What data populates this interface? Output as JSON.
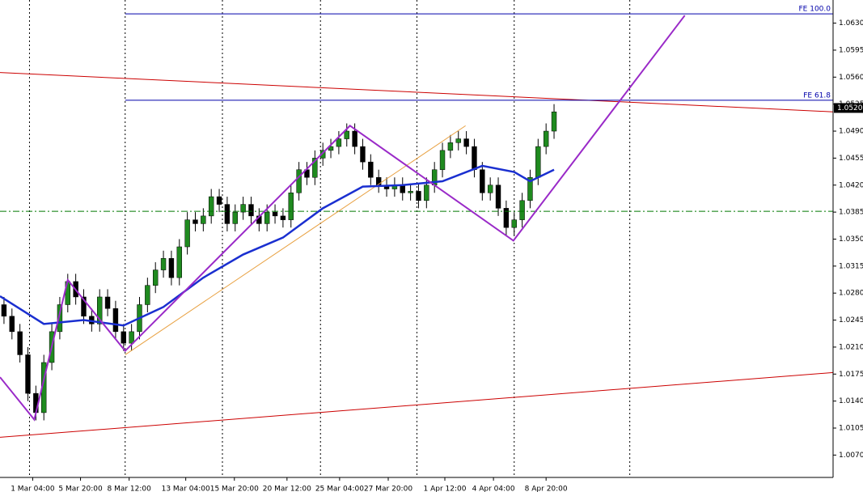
{
  "chart_data": {
    "type": "candlestick",
    "xlim": [
      -0.5,
      104
    ],
    "ylim": [
      1.0041,
      1.066
    ],
    "yticks": [
      {
        "value": 1.063,
        "label": "1.0630"
      },
      {
        "value": 1.0595,
        "label": "1.0595"
      },
      {
        "value": 1.056,
        "label": "1.0560"
      },
      {
        "value": 1.0525,
        "label": "1.0525"
      },
      {
        "value": 1.049,
        "label": "1.0490"
      },
      {
        "value": 1.0455,
        "label": "1.0455"
      },
      {
        "value": 1.042,
        "label": "1.0420"
      },
      {
        "value": 1.0385,
        "label": "1.0385"
      },
      {
        "value": 1.035,
        "label": "1.0350"
      },
      {
        "value": 1.0315,
        "label": "1.0315"
      },
      {
        "value": 1.028,
        "label": "1.0280"
      },
      {
        "value": 1.0245,
        "label": "1.0245"
      },
      {
        "value": 1.021,
        "label": "1.0210"
      },
      {
        "value": 1.0175,
        "label": "1.0175"
      },
      {
        "value": 1.014,
        "label": "1.0140"
      },
      {
        "value": 1.0105,
        "label": "1.0105"
      },
      {
        "value": 1.007,
        "label": "1.0070"
      }
    ],
    "xticks": [
      {
        "value": 3.6,
        "label": "1 Mar 04:00"
      },
      {
        "value": 9.6,
        "label": "5 Mar 20:00"
      },
      {
        "value": 15.7,
        "label": "8 Mar 12:00"
      },
      {
        "value": 22.8,
        "label": "13 Mar 04:00"
      },
      {
        "value": 28.9,
        "label": "15 Mar 20:00"
      },
      {
        "value": 35.5,
        "label": "20 Mar 12:00"
      },
      {
        "value": 42.1,
        "label": "25 Mar 04:00"
      },
      {
        "value": 48.2,
        "label": "27 Mar 20:00"
      },
      {
        "value": 55.3,
        "label": "1 Apr 12:00"
      },
      {
        "value": 61.4,
        "label": "4 Apr 04:00"
      },
      {
        "value": 68.0,
        "label": "8 Apr 20:00"
      }
    ],
    "vgrid": [
      3.2,
      15.2,
      27.4,
      39.7,
      51.8,
      64.0,
      78.5
    ],
    "bull_color": "#1f8a1f",
    "bear_color": "#000000",
    "open": [
      1.0265,
      1.025,
      1.023,
      1.02,
      1.015,
      1.0125,
      1.019,
      1.023,
      1.0265,
      1.0295,
      1.0275,
      1.025,
      1.024,
      1.0275,
      1.026,
      1.023,
      1.0215,
      1.023,
      1.0265,
      1.029,
      1.031,
      1.0325,
      1.03,
      1.034,
      1.0375,
      1.037,
      1.038,
      1.0405,
      1.0395,
      1.037,
      1.0385,
      1.0395,
      1.038,
      1.037,
      1.0385,
      1.038,
      1.0375,
      1.041,
      1.044,
      1.043,
      1.0455,
      1.0465,
      1.047,
      1.048,
      1.049,
      1.047,
      1.045,
      1.043,
      1.042,
      1.0415,
      1.042,
      1.041,
      1.0412,
      1.04,
      1.042,
      1.044,
      1.0465,
      1.0475,
      1.048,
      1.047,
      1.044,
      1.041,
      1.042,
      1.039,
      1.0365,
      1.0375,
      1.04,
      1.043,
      1.047,
      1.049
    ],
    "high": [
      1.0275,
      1.026,
      1.024,
      1.021,
      1.016,
      1.02,
      1.024,
      1.0275,
      1.0305,
      1.0305,
      1.0285,
      1.026,
      1.0285,
      1.0285,
      1.027,
      1.024,
      1.024,
      1.0275,
      1.03,
      1.032,
      1.0335,
      1.0335,
      1.035,
      1.0385,
      1.0385,
      1.039,
      1.0415,
      1.0415,
      1.0405,
      1.0395,
      1.0405,
      1.0405,
      1.039,
      1.0395,
      1.0395,
      1.039,
      1.042,
      1.045,
      1.045,
      1.0465,
      1.0475,
      1.048,
      1.049,
      1.05,
      1.05,
      1.048,
      1.046,
      1.044,
      1.043,
      1.043,
      1.043,
      1.0422,
      1.0422,
      1.043,
      1.045,
      1.0475,
      1.0485,
      1.049,
      1.049,
      1.048,
      1.045,
      1.043,
      1.043,
      1.04,
      1.0385,
      1.041,
      1.044,
      1.048,
      1.05,
      1.0525
    ],
    "low": [
      1.024,
      1.022,
      1.019,
      1.014,
      1.0115,
      1.0115,
      1.018,
      1.022,
      1.0255,
      1.0265,
      1.024,
      1.023,
      1.023,
      1.025,
      1.022,
      1.0205,
      1.0205,
      1.022,
      1.0255,
      1.028,
      1.03,
      1.029,
      1.029,
      1.033,
      1.036,
      1.036,
      1.037,
      1.0385,
      1.036,
      1.036,
      1.0375,
      1.037,
      1.036,
      1.036,
      1.037,
      1.0365,
      1.0365,
      1.04,
      1.042,
      1.042,
      1.0445,
      1.0455,
      1.046,
      1.047,
      1.046,
      1.044,
      1.042,
      1.041,
      1.0405,
      1.0405,
      1.04,
      1.04,
      1.039,
      1.039,
      1.041,
      1.043,
      1.0455,
      1.0465,
      1.046,
      1.043,
      1.04,
      1.04,
      1.038,
      1.0355,
      1.0355,
      1.0365,
      1.039,
      1.042,
      1.046,
      1.048
    ],
    "close": [
      1.025,
      1.023,
      1.02,
      1.015,
      1.0125,
      1.019,
      1.023,
      1.0265,
      1.0295,
      1.0275,
      1.025,
      1.024,
      1.0275,
      1.026,
      1.023,
      1.0215,
      1.023,
      1.0265,
      1.029,
      1.031,
      1.0325,
      1.03,
      1.034,
      1.0375,
      1.037,
      1.038,
      1.0405,
      1.0395,
      1.037,
      1.0385,
      1.0395,
      1.038,
      1.037,
      1.0385,
      1.038,
      1.0375,
      1.041,
      1.044,
      1.043,
      1.0455,
      1.0465,
      1.047,
      1.048,
      1.049,
      1.047,
      1.045,
      1.043,
      1.042,
      1.0415,
      1.042,
      1.041,
      1.0412,
      1.04,
      1.042,
      1.044,
      1.0465,
      1.0475,
      1.048,
      1.047,
      1.044,
      1.041,
      1.042,
      1.039,
      1.0365,
      1.0375,
      1.04,
      1.043,
      1.047,
      1.049,
      1.0515
    ],
    "overlays": [
      {
        "color": "#cc0000",
        "width": 1,
        "x": [
          -0.5,
          104
        ],
        "y": [
          1.0566,
          1.0515
        ]
      },
      {
        "color": "#cc0000",
        "width": 1,
        "x": [
          -0.5,
          104
        ],
        "y": [
          1.0093,
          1.0177
        ]
      },
      {
        "color": "#0000aa",
        "width": 1,
        "x": [
          15.2,
          104
        ],
        "y": [
          1.0642,
          1.0642
        ],
        "label": "FE 100.0"
      },
      {
        "color": "#0000aa",
        "width": 1,
        "x": [
          15.2,
          104
        ],
        "y": [
          1.053,
          1.053
        ],
        "label": "FE 61.8"
      },
      {
        "color": "#007700",
        "width": 1,
        "dash": "dashdot",
        "x": [
          -0.5,
          104
        ],
        "y": [
          1.0386,
          1.0386
        ]
      },
      {
        "color": "#e8a040",
        "width": 1,
        "x": [
          15.2,
          57.9
        ],
        "y": [
          1.02,
          1.0497
        ]
      },
      {
        "color": "#1a2fd0",
        "width": 2.5,
        "x": [
          -0.5,
          5,
          10,
          15,
          20,
          25,
          30,
          35,
          40,
          45,
          50,
          55,
          60,
          64,
          66,
          69
        ],
        "y": [
          1.0276,
          1.024,
          1.0245,
          1.0238,
          1.0262,
          1.03,
          1.033,
          1.0352,
          1.039,
          1.0418,
          1.042,
          1.0425,
          1.0445,
          1.0437,
          1.0425,
          1.044
        ]
      },
      {
        "color": "#9a2ac8",
        "width": 2,
        "x": [
          -0.5,
          3.8,
          8.0,
          15.2,
          43.4,
          63.9,
          85.4
        ],
        "y": [
          1.0171,
          1.0116,
          1.0297,
          1.0205,
          1.0497,
          1.0348,
          1.064
        ]
      }
    ],
    "current_price": {
      "value": 1.052,
      "label": "1.0520"
    }
  }
}
